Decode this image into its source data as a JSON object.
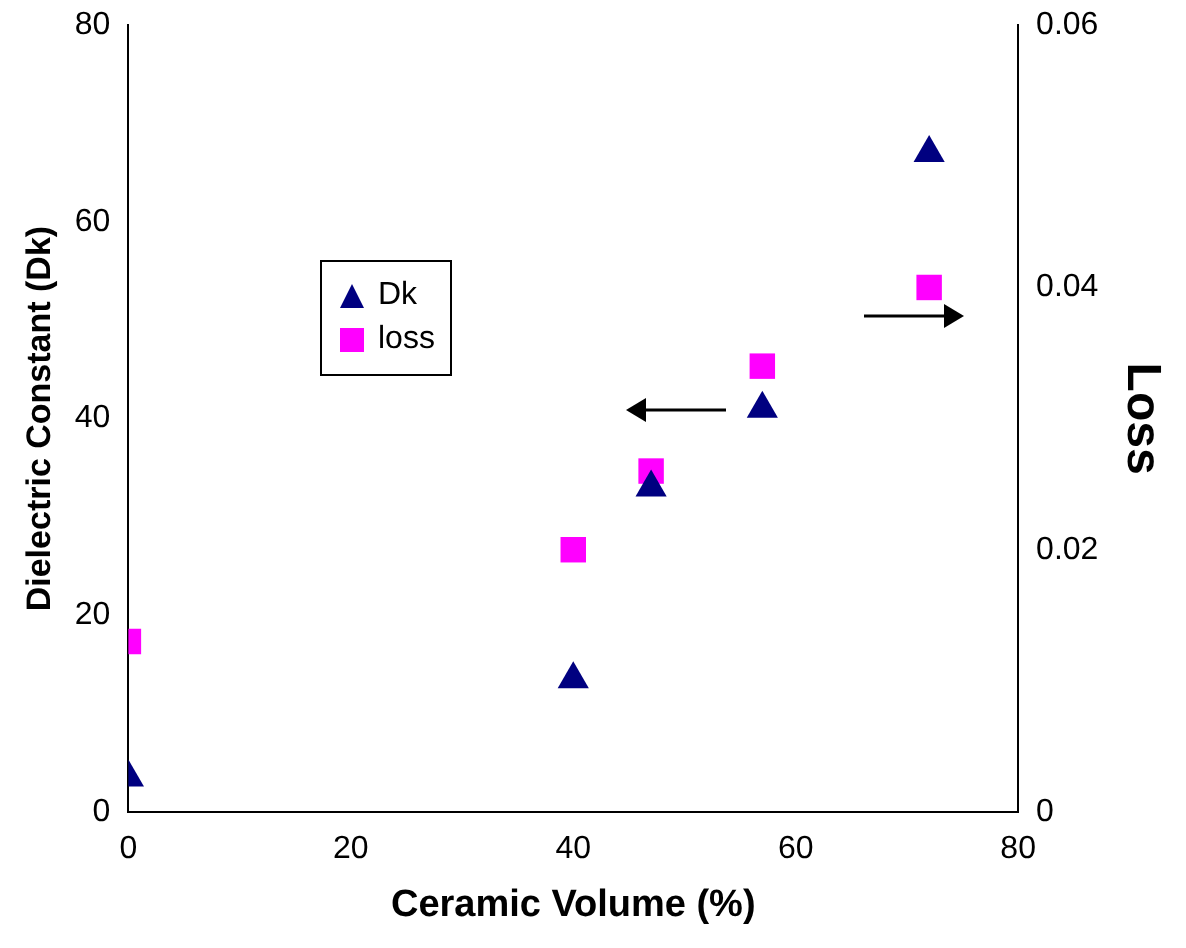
{
  "chart_data": {
    "type": "scatter",
    "xlabel": "Ceramic Volume (%)",
    "ylabel": "Dielectric Constant (Dk)",
    "y2label": "Loss",
    "xlim": [
      0,
      80
    ],
    "xticks": [
      0,
      20,
      40,
      60,
      80
    ],
    "ylim": [
      0,
      80
    ],
    "yticks": [
      0,
      20,
      40,
      60,
      80
    ],
    "y2lim": [
      0,
      0.06
    ],
    "y2ticks": [
      0,
      0.02,
      0.04,
      0.06
    ],
    "grid": false,
    "legend": "left",
    "series": [
      {
        "name": "Dk",
        "color": "#000080",
        "marker": "triangle",
        "x": [
          0,
          40,
          47,
          57,
          72
        ],
        "values": [
          3.5,
          13.5,
          33,
          41,
          67
        ]
      },
      {
        "name": "loss",
        "color": "#ff00ff",
        "marker": "square",
        "axis": "y2",
        "x": [
          0,
          40,
          47,
          57,
          72
        ],
        "values": [
          0.013,
          0.02,
          0.026,
          0.034,
          0.04
        ]
      }
    ]
  }
}
